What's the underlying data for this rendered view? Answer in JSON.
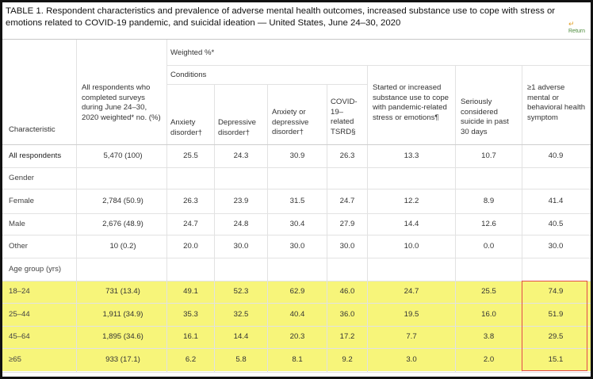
{
  "title": "TABLE 1. Respondent characteristics and prevalence of adverse mental health outcomes, increased substance use to cope with stress or emotions related to COVID-19 pandemic, and suicidal ideation — United States, June 24–30, 2020",
  "return_link": {
    "label": "Return",
    "icon": "return-arrow-icon"
  },
  "header": {
    "weighted": "Weighted %*",
    "conditions": "Conditions",
    "characteristic": "Characteristic",
    "all_respondents": "All respondents who completed surveys during June 24–30, 2020 weighted* no. (%)",
    "anxiety": "Anxiety disorder†",
    "depressive": "Depressive disorder†",
    "anx_or_dep": "Anxiety or depressive disorder†",
    "tsrd": "COVID-19–related TSRD§",
    "substance": "Started or increased substance use to cope with pandemic-related stress or emotions¶",
    "suicide": "Seriously considered suicide in past 30 days",
    "adverse": "≥1 adverse mental or behavioral health symptom"
  },
  "sections": {
    "gender": "Gender",
    "age": "Age group (yrs)"
  },
  "rows": [
    {
      "label": "All respondents",
      "values": [
        "5,470 (100)",
        "25.5",
        "24.3",
        "30.9",
        "26.3",
        "13.3",
        "10.7",
        "40.9"
      ]
    },
    {
      "label": "Female",
      "values": [
        "2,784 (50.9)",
        "26.3",
        "23.9",
        "31.5",
        "24.7",
        "12.2",
        "8.9",
        "41.4"
      ]
    },
    {
      "label": "Male",
      "values": [
        "2,676 (48.9)",
        "24.7",
        "24.8",
        "30.4",
        "27.9",
        "14.4",
        "12.6",
        "40.5"
      ]
    },
    {
      "label": "Other",
      "values": [
        "10 (0.2)",
        "20.0",
        "30.0",
        "30.0",
        "30.0",
        "10.0",
        "0.0",
        "30.0"
      ]
    },
    {
      "label": "18–24",
      "values": [
        "731 (13.4)",
        "49.1",
        "52.3",
        "62.9",
        "46.0",
        "24.7",
        "25.5",
        "74.9"
      ]
    },
    {
      "label": "25–44",
      "values": [
        "1,911 (34.9)",
        "35.3",
        "32.5",
        "40.4",
        "36.0",
        "19.5",
        "16.0",
        "51.9"
      ]
    },
    {
      "label": "45–64",
      "values": [
        "1,895 (34.6)",
        "16.1",
        "14.4",
        "20.3",
        "17.2",
        "7.7",
        "3.8",
        "29.5"
      ]
    },
    {
      "label": "≥65",
      "values": [
        "933 (17.1)",
        "6.2",
        "5.8",
        "8.1",
        "9.2",
        "3.0",
        "2.0",
        "15.1"
      ]
    }
  ],
  "colors": {
    "highlight": "#f7f57a",
    "box": "#e24b4b"
  }
}
